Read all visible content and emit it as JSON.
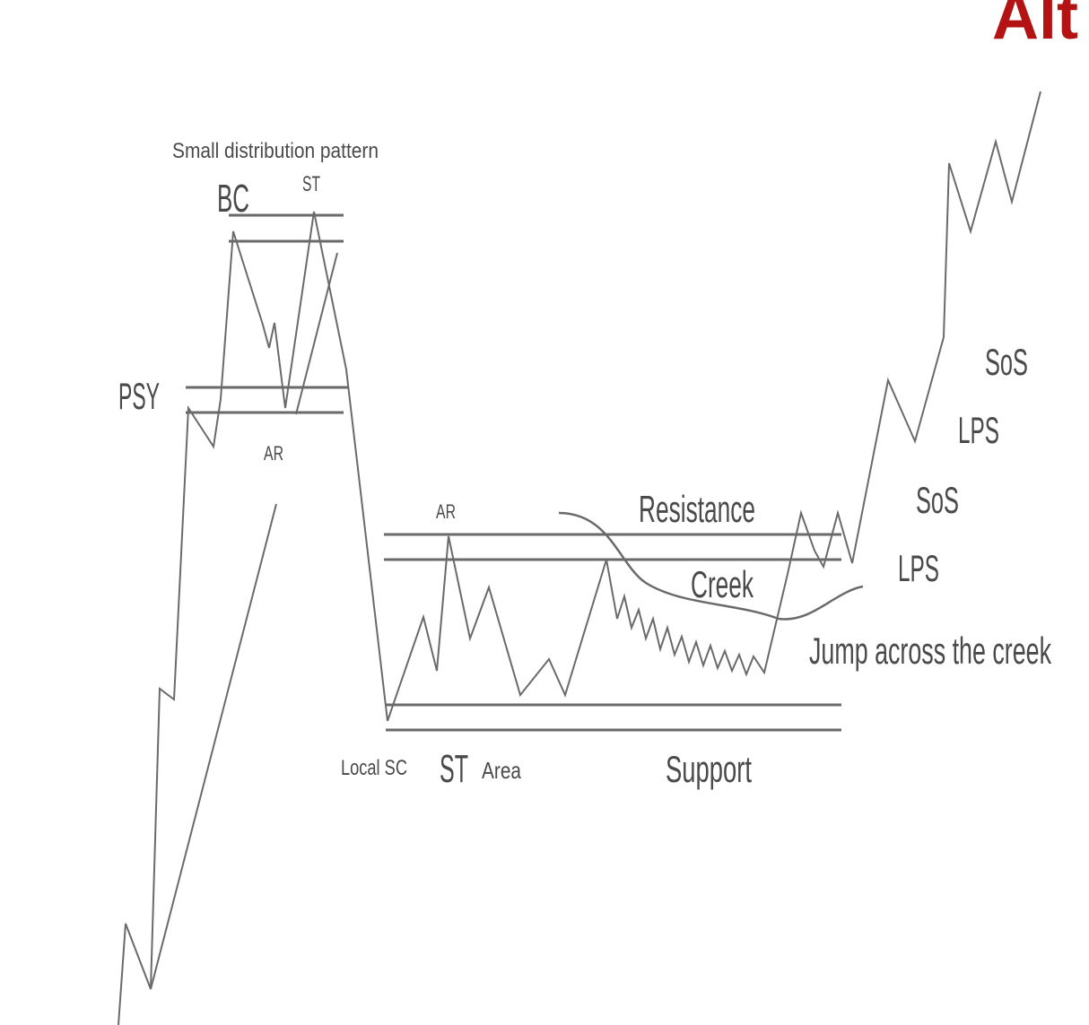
{
  "header": {
    "title_fragment": "Alt"
  },
  "labels": {
    "small_distribution_pattern": "Small distribution pattern",
    "bc": "BC",
    "st_top": "ST",
    "psy": "PSY",
    "ar_top": "AR",
    "ar_range": "AR",
    "resistance": "Resistance",
    "creek": "Creek",
    "jump_across_the_creek": "Jump across the creek",
    "local_sc": "Local SC",
    "st_area_st": "ST",
    "st_area_area": "Area",
    "support": "Support",
    "lps_lower": "LPS",
    "sos_lower": "SoS",
    "lps_upper": "LPS",
    "sos_upper": "SoS"
  },
  "colors": {
    "title": "#b31313",
    "lines": "#6a6a6a",
    "labels": "#4a4a4a",
    "background": "#ffffff"
  }
}
